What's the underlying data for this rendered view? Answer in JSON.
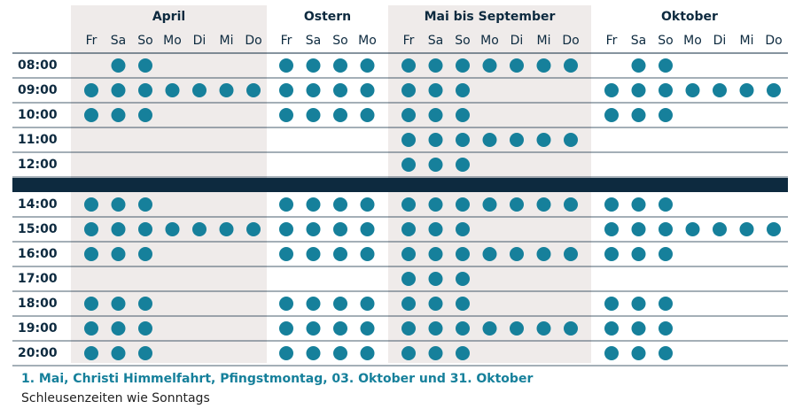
{
  "table": {
    "groups": [
      {
        "name": "April",
        "days": [
          "Fr",
          "Sa",
          "So",
          "Mo",
          "Di",
          "Mi",
          "Do"
        ]
      },
      {
        "name": "Ostern",
        "days": [
          "Fr",
          "Sa",
          "So",
          "Mo"
        ]
      },
      {
        "name": "Mai bis September",
        "days": [
          "Fr",
          "Sa",
          "So",
          "Mo",
          "Di",
          "Mi",
          "Do"
        ]
      },
      {
        "name": "Oktober",
        "days": [
          "Fr",
          "Sa",
          "So",
          "Mo",
          "Di",
          "Mi",
          "Do"
        ]
      }
    ],
    "blocks": [
      {
        "rows": [
          {
            "time": "08:00",
            "slots": [
              [
                false,
                true,
                true,
                false,
                false,
                false,
                false
              ],
              [
                true,
                true,
                true,
                true
              ],
              [
                true,
                true,
                true,
                true,
                true,
                true,
                true
              ],
              [
                false,
                true,
                true,
                false,
                false,
                false,
                false
              ]
            ]
          },
          {
            "time": "09:00",
            "slots": [
              [
                true,
                true,
                true,
                true,
                true,
                true,
                true
              ],
              [
                true,
                true,
                true,
                true
              ],
              [
                true,
                true,
                true,
                false,
                false,
                false,
                false
              ],
              [
                true,
                true,
                true,
                true,
                true,
                true,
                true
              ]
            ]
          },
          {
            "time": "10:00",
            "slots": [
              [
                true,
                true,
                true,
                false,
                false,
                false,
                false
              ],
              [
                true,
                true,
                true,
                true
              ],
              [
                true,
                true,
                true,
                false,
                false,
                false,
                false
              ],
              [
                true,
                true,
                true,
                false,
                false,
                false,
                false
              ]
            ]
          },
          {
            "time": "11:00",
            "slots": [
              [
                false,
                false,
                false,
                false,
                false,
                false,
                false
              ],
              [
                false,
                false,
                false,
                false
              ],
              [
                true,
                true,
                true,
                true,
                true,
                true,
                true
              ],
              [
                false,
                false,
                false,
                false,
                false,
                false,
                false
              ]
            ]
          },
          {
            "time": "12:00",
            "slots": [
              [
                false,
                false,
                false,
                false,
                false,
                false,
                false
              ],
              [
                false,
                false,
                false,
                false
              ],
              [
                true,
                true,
                true,
                false,
                false,
                false,
                false
              ],
              [
                false,
                false,
                false,
                false,
                false,
                false,
                false
              ]
            ]
          }
        ]
      },
      {
        "rows": [
          {
            "time": "14:00",
            "slots": [
              [
                true,
                true,
                true,
                false,
                false,
                false,
                false
              ],
              [
                true,
                true,
                true,
                true
              ],
              [
                true,
                true,
                true,
                true,
                true,
                true,
                true
              ],
              [
                true,
                true,
                true,
                false,
                false,
                false,
                false
              ]
            ]
          },
          {
            "time": "15:00",
            "slots": [
              [
                true,
                true,
                true,
                true,
                true,
                true,
                true
              ],
              [
                true,
                true,
                true,
                true
              ],
              [
                true,
                true,
                true,
                false,
                false,
                false,
                false
              ],
              [
                true,
                true,
                true,
                true,
                true,
                true,
                true
              ]
            ]
          },
          {
            "time": "16:00",
            "slots": [
              [
                true,
                true,
                true,
                false,
                false,
                false,
                false
              ],
              [
                true,
                true,
                true,
                true
              ],
              [
                true,
                true,
                true,
                true,
                true,
                true,
                true
              ],
              [
                true,
                true,
                true,
                false,
                false,
                false,
                false
              ]
            ]
          },
          {
            "time": "17:00",
            "slots": [
              [
                false,
                false,
                false,
                false,
                false,
                false,
                false
              ],
              [
                false,
                false,
                false,
                false
              ],
              [
                true,
                true,
                true,
                false,
                false,
                false,
                false
              ],
              [
                false,
                false,
                false,
                false,
                false,
                false,
                false
              ]
            ]
          },
          {
            "time": "18:00",
            "slots": [
              [
                true,
                true,
                true,
                false,
                false,
                false,
                false
              ],
              [
                true,
                true,
                true,
                true
              ],
              [
                true,
                true,
                true,
                false,
                false,
                false,
                false
              ],
              [
                true,
                true,
                true,
                false,
                false,
                false,
                false
              ]
            ]
          },
          {
            "time": "19:00",
            "slots": [
              [
                true,
                true,
                true,
                false,
                false,
                false,
                false
              ],
              [
                true,
                true,
                true,
                true
              ],
              [
                true,
                true,
                true,
                true,
                true,
                true,
                true
              ],
              [
                true,
                true,
                true,
                false,
                false,
                false,
                false
              ]
            ]
          },
          {
            "time": "20:00",
            "slots": [
              [
                true,
                true,
                true,
                false,
                false,
                false,
                false
              ],
              [
                true,
                true,
                true,
                true
              ],
              [
                true,
                true,
                true,
                false,
                false,
                false,
                false
              ],
              [
                true,
                true,
                true,
                false,
                false,
                false,
                false
              ]
            ]
          }
        ]
      }
    ]
  },
  "note": {
    "title": "1. Mai, Christi Himmelfahrt, Pfingstmontag, 03. Oktober und 31. Oktober",
    "text": "Schleusenzeiten wie Sonntags"
  }
}
